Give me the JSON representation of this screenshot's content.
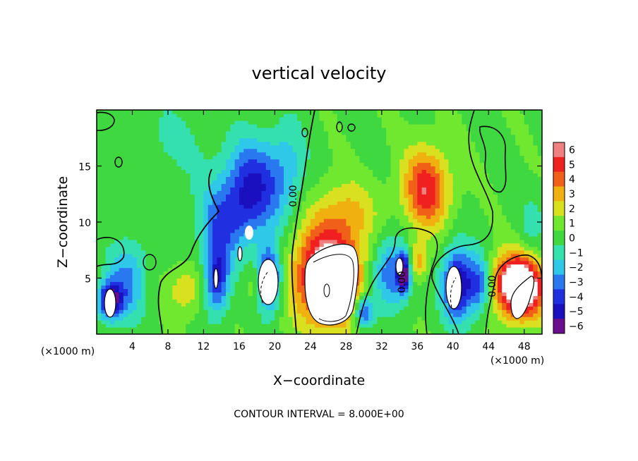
{
  "chart_data": {
    "type": "heatmap",
    "title": "vertical velocity",
    "xlabel": "X−coordinate",
    "ylabel": "Z−coordinate",
    "x_unit": "(×1000 m)",
    "x_unit_right": "(×1000 m)",
    "footer": "CONTOUR INTERVAL = 8.000E+00",
    "contour_label_a": "0.00",
    "contour_label_b": "0.00",
    "contour_label_c": "0.00",
    "xlim": [
      0,
      50
    ],
    "ylim": [
      0,
      20
    ],
    "x_ticks": [
      4,
      8,
      12,
      16,
      20,
      24,
      28,
      32,
      36,
      40,
      44,
      48
    ],
    "x_tick_labels": [
      "4",
      "8",
      "12",
      "16",
      "20",
      "24",
      "28",
      "32",
      "36",
      "40",
      "44",
      "48"
    ],
    "y_ticks": [
      5,
      10,
      15
    ],
    "y_tick_labels": [
      "5",
      "10",
      "15"
    ],
    "colorbar": {
      "range": [
        -6,
        6
      ],
      "ticks": [
        -6,
        -5,
        -4,
        -3,
        -2,
        -1,
        0,
        1,
        2,
        3,
        4,
        5,
        6
      ],
      "tick_labels": [
        "−6",
        "−5",
        "−4",
        "−3",
        "−2",
        "−1",
        "0",
        "1",
        "2",
        "3",
        "4",
        "5",
        "6"
      ],
      "colors": [
        "#6a0d8e",
        "#1a10c0",
        "#2030e0",
        "#2a78f0",
        "#30c8e8",
        "#34e0b0",
        "#40d840",
        "#70e830",
        "#d8e020",
        "#f0b010",
        "#f06018",
        "#f02020",
        "#f08080"
      ]
    },
    "features": [
      {
        "x": 1.5,
        "z": 3.0,
        "w": -6,
        "sx": 1.0,
        "sz": 1.2
      },
      {
        "x": 3.5,
        "z": 5.0,
        "w": -3,
        "sx": 1.6,
        "sz": 2.5
      },
      {
        "x": 10.0,
        "z": 4.0,
        "w": 2,
        "sx": 1.5,
        "sz": 1.5
      },
      {
        "x": 13.5,
        "z": 5.0,
        "w": -5,
        "sx": 1.0,
        "sz": 2.2
      },
      {
        "x": 17.5,
        "z": 13.0,
        "w": -5,
        "sx": 2.2,
        "sz": 3.0
      },
      {
        "x": 14.0,
        "z": 10.0,
        "w": -3,
        "sx": 2.0,
        "sz": 2.5
      },
      {
        "x": 18.0,
        "z": 4.5,
        "w": 2,
        "sx": 0.8,
        "sz": 1.5
      },
      {
        "x": 19.3,
        "z": 5.0,
        "w": -6,
        "sx": 1.0,
        "sz": 2.0
      },
      {
        "x": 21.5,
        "z": 15.0,
        "w": -2,
        "sx": 1.5,
        "sz": 3.0
      },
      {
        "x": 26.0,
        "z": 5.2,
        "w": 8,
        "sx": 2.6,
        "sz": 3.0
      },
      {
        "x": 28.0,
        "z": 11.0,
        "w": 2,
        "sx": 2.5,
        "sz": 2.0
      },
      {
        "x": 30.0,
        "z": 2.0,
        "w": -5,
        "sx": 0.8,
        "sz": 1.0
      },
      {
        "x": 33.0,
        "z": 5.5,
        "w": -4,
        "sx": 1.5,
        "sz": 2.2
      },
      {
        "x": 34.5,
        "z": 5.5,
        "w": -6,
        "sx": 0.5,
        "sz": 1.2
      },
      {
        "x": 36.0,
        "z": 6.5,
        "w": 3,
        "sx": 0.8,
        "sz": 1.2
      },
      {
        "x": 37.0,
        "z": 13.0,
        "w": 5,
        "sx": 1.8,
        "sz": 2.5
      },
      {
        "x": 40.5,
        "z": 4.5,
        "w": -6,
        "sx": 1.2,
        "sz": 2.3
      },
      {
        "x": 43.0,
        "z": 4.5,
        "w": -4,
        "sx": 1.0,
        "sz": 1.8
      },
      {
        "x": 47.5,
        "z": 3.8,
        "w": 7,
        "sx": 2.0,
        "sz": 1.8
      },
      {
        "x": 47.0,
        "z": 5.5,
        "w": 3,
        "sx": 2.0,
        "sz": 1.5
      },
      {
        "x": 49.0,
        "z": 10.0,
        "w": -1.2,
        "sx": 1.0,
        "sz": 2.0
      },
      {
        "x": 8.0,
        "z": 17.0,
        "w": -1,
        "sx": 4.0,
        "sz": 3.0
      }
    ]
  }
}
